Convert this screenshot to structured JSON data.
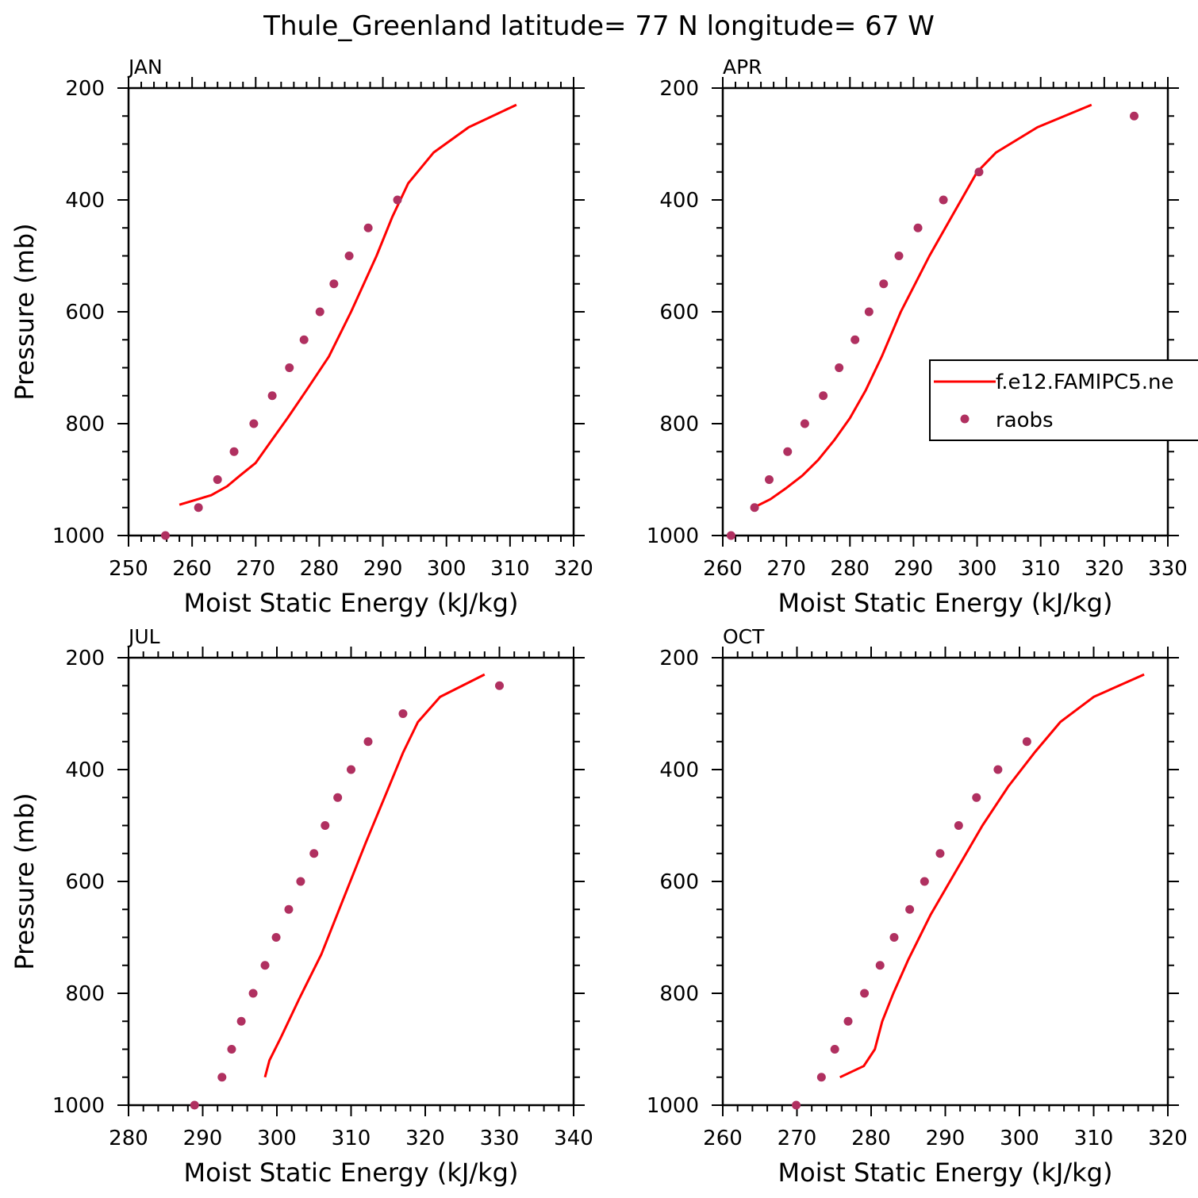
{
  "figure": {
    "title": "Thule_Greenland  latitude= 77 N longitude= 67 W"
  },
  "legend": {
    "entries": [
      "f.e12.FAMIPC5.ne",
      "raobs"
    ]
  },
  "colors": {
    "model": "#ff0000",
    "raobs": "#b03060"
  },
  "chart_data": [
    {
      "type": "line",
      "panel": "JAN",
      "title": "JAN",
      "xlabel": "Moist Static Energy (kJ/kg)",
      "ylabel": "Pressure (mb)",
      "xlim": [
        250,
        320
      ],
      "ylim": [
        1000,
        200
      ],
      "xticks": [
        250,
        260,
        270,
        280,
        290,
        300,
        310,
        320
      ],
      "yticks": [
        200,
        400,
        600,
        800,
        1000
      ],
      "series": [
        {
          "name": "f.e12.FAMIPC5.ne",
          "style": "line",
          "x": [
            311,
            303.5,
            298,
            294,
            291.5,
            289,
            285,
            281.5,
            278,
            275,
            272.5,
            270,
            267.5,
            265.5,
            263,
            258
          ],
          "y": [
            230,
            270,
            315,
            370,
            430,
            500,
            600,
            680,
            740,
            790,
            830,
            870,
            893,
            912,
            928,
            945
          ]
        },
        {
          "name": "raobs",
          "style": "markers",
          "x": [
            292.3,
            287.7,
            284.7,
            282.3,
            280.1,
            277.6,
            275.3,
            272.6,
            269.7,
            266.6,
            264,
            261,
            255.8
          ],
          "y": [
            400,
            450,
            500,
            550,
            600,
            650,
            700,
            750,
            800,
            850,
            900,
            950,
            1000
          ]
        }
      ]
    },
    {
      "type": "line",
      "panel": "APR",
      "title": "APR",
      "xlabel": "Moist Static Energy (kJ/kg)",
      "ylabel": "",
      "xlim": [
        260,
        330
      ],
      "ylim": [
        1000,
        200
      ],
      "xticks": [
        260,
        270,
        280,
        290,
        300,
        310,
        320,
        330
      ],
      "yticks": [
        200,
        400,
        600,
        800,
        1000
      ],
      "series": [
        {
          "name": "f.e12.FAMIPC5.ne",
          "style": "line",
          "x": [
            318,
            309.5,
            303,
            300,
            296,
            292.5,
            288,
            285,
            282.5,
            280,
            277.5,
            275,
            272.5,
            270,
            267.5,
            264.5
          ],
          "y": [
            230,
            270,
            315,
            350,
            430,
            500,
            600,
            680,
            740,
            790,
            830,
            865,
            893,
            915,
            935,
            952
          ]
        },
        {
          "name": "raobs",
          "style": "markers",
          "x": [
            324.7,
            300.3,
            294.7,
            290.7,
            287.7,
            285.3,
            283,
            280.8,
            278.3,
            275.8,
            272.9,
            270.2,
            267.3,
            265,
            261.3
          ],
          "y": [
            250,
            350,
            400,
            450,
            500,
            550,
            600,
            650,
            700,
            750,
            800,
            850,
            900,
            950,
            1000
          ]
        }
      ]
    },
    {
      "type": "line",
      "panel": "JUL",
      "title": "JUL",
      "xlabel": "Moist Static Energy (kJ/kg)",
      "ylabel": "Pressure (mb)",
      "xlim": [
        280,
        340
      ],
      "ylim": [
        1000,
        200
      ],
      "xticks": [
        280,
        290,
        300,
        310,
        320,
        330,
        340
      ],
      "yticks": [
        200,
        400,
        600,
        800,
        1000
      ],
      "series": [
        {
          "name": "f.e12.FAMIPC5.ne",
          "style": "line",
          "x": [
            328,
            322,
            319,
            317,
            314.5,
            312,
            309,
            306,
            303,
            300.5,
            299,
            298.4
          ],
          "y": [
            230,
            270,
            315,
            370,
            450,
            530,
            630,
            730,
            810,
            880,
            920,
            950
          ]
        },
        {
          "name": "raobs",
          "style": "markers",
          "x": [
            330,
            317,
            312.3,
            310,
            308.2,
            306.5,
            305,
            303.2,
            301.6,
            299.9,
            298.4,
            296.8,
            295.2,
            293.9,
            292.6,
            288.9
          ],
          "y": [
            250,
            300,
            350,
            400,
            450,
            500,
            550,
            600,
            650,
            700,
            750,
            800,
            850,
            900,
            950,
            1000
          ]
        }
      ]
    },
    {
      "type": "line",
      "panel": "OCT",
      "title": "OCT",
      "xlabel": "Moist Static Energy (kJ/kg)",
      "ylabel": "",
      "xlim": [
        260,
        320
      ],
      "ylim": [
        1000,
        200
      ],
      "xticks": [
        260,
        270,
        280,
        290,
        300,
        310,
        320
      ],
      "yticks": [
        200,
        400,
        600,
        800,
        1000
      ],
      "series": [
        {
          "name": "f.e12.FAMIPC5.ne",
          "style": "line",
          "x": [
            316.8,
            310,
            305.5,
            302,
            298.5,
            295,
            291.5,
            288,
            285,
            283,
            281.5,
            280.5,
            279,
            275.8
          ],
          "y": [
            230,
            270,
            315,
            370,
            430,
            500,
            580,
            660,
            740,
            800,
            850,
            900,
            930,
            950
          ]
        },
        {
          "name": "raobs",
          "style": "markers",
          "x": [
            301,
            297.1,
            294.2,
            291.8,
            289.3,
            287.2,
            285.2,
            283.1,
            281.2,
            279.1,
            276.9,
            275.1,
            273.3,
            269.9
          ],
          "y": [
            350,
            400,
            450,
            500,
            550,
            600,
            650,
            700,
            750,
            800,
            850,
            900,
            950,
            1000
          ]
        }
      ]
    }
  ]
}
